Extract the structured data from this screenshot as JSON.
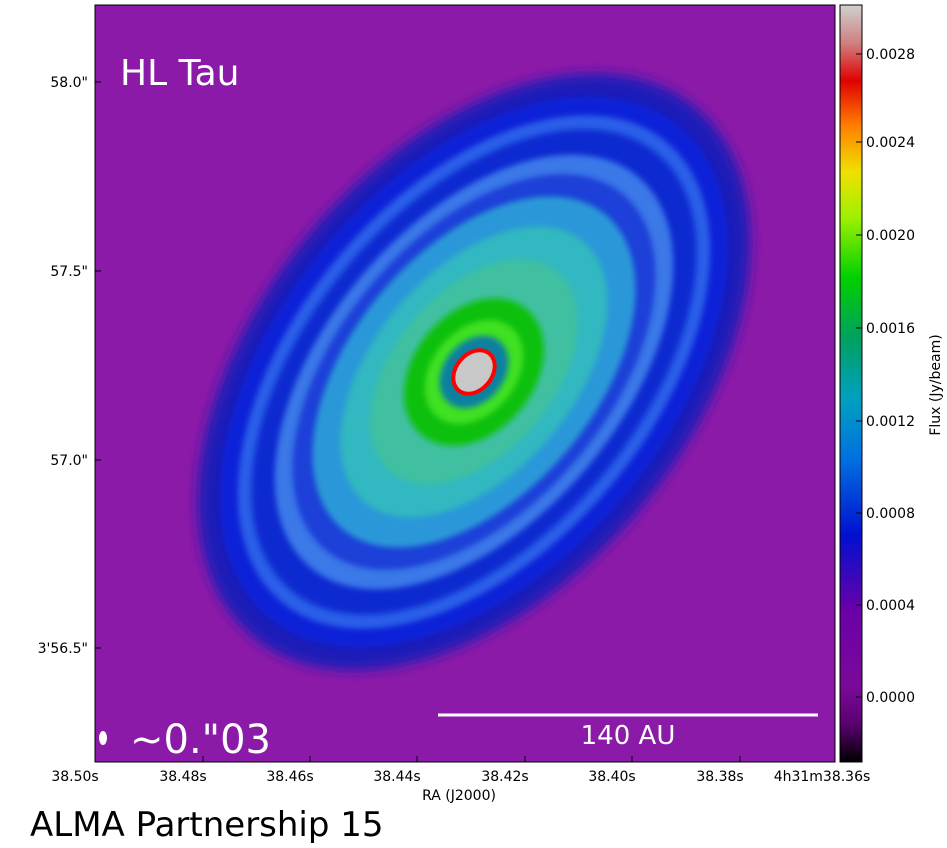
{
  "image": {
    "target": "HL Tau",
    "beam_label": "~0.\"03",
    "scale_bar_label": "140 AU",
    "credit": "ALMA Partnership 15"
  },
  "x_axis": {
    "label": "RA (J2000)",
    "ticks": [
      "38.50s",
      "38.48s",
      "38.46s",
      "38.44s",
      "38.42s",
      "38.40s",
      "38.38s",
      "4h31m38.36s"
    ]
  },
  "y_axis": {
    "ticks": [
      "58.0\"",
      "57.5\"",
      "57.0\"",
      "3'56.5\""
    ]
  },
  "colorbar": {
    "label": "Flux (Jy/beam)",
    "ticks": [
      "0.0028",
      "0.0024",
      "0.0020",
      "0.0016",
      "0.0012",
      "0.0008",
      "0.0004",
      "0.0000"
    ]
  }
}
